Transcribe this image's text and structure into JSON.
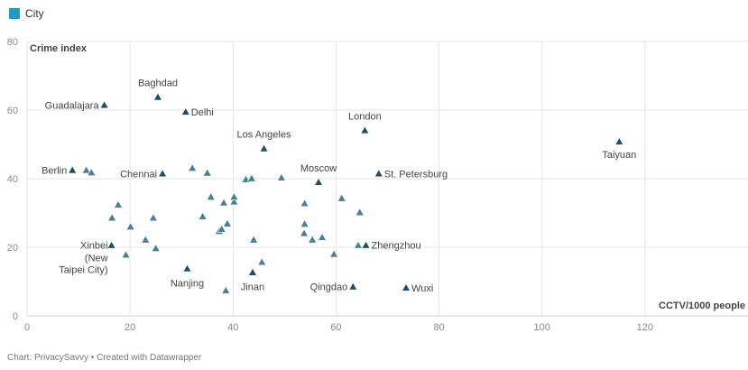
{
  "legend": {
    "label": "City",
    "color": "#1d9bc4"
  },
  "footer": "Chart: PrivacySavvy • Created with Datawrapper",
  "colors": {
    "point": "#4a7f99",
    "labeled_point": "#1f4f66",
    "grid": "#e6e6e6",
    "axis": "#cccccc"
  },
  "chart_data": {
    "type": "scatter",
    "title": "",
    "xlabel": "CCTV/1000 people",
    "ylabel": "Crime index",
    "xlim": [
      0,
      140
    ],
    "ylim": [
      0,
      80
    ],
    "xticks": [
      0,
      20,
      40,
      60,
      80,
      100,
      120
    ],
    "yticks": [
      0,
      20,
      40,
      60,
      80
    ],
    "grid": true,
    "legend_position": "top-left",
    "series": [
      {
        "name": "City",
        "points": [
          {
            "x": 15.0,
            "y": 61.5,
            "label": "Guadalajara"
          },
          {
            "x": 25.4,
            "y": 63.8,
            "label": "Baghdad"
          },
          {
            "x": 30.8,
            "y": 59.5,
            "label": "Delhi"
          },
          {
            "x": 65.6,
            "y": 54.1,
            "label": "London"
          },
          {
            "x": 46.0,
            "y": 48.8,
            "label": "Los Angeles"
          },
          {
            "x": 115.0,
            "y": 50.8,
            "label": "Taiyuan"
          },
          {
            "x": 8.8,
            "y": 42.5,
            "label": "Berlin"
          },
          {
            "x": 26.3,
            "y": 41.5,
            "label": "Chennai"
          },
          {
            "x": 56.6,
            "y": 39.0,
            "label": "Moscow"
          },
          {
            "x": 68.3,
            "y": 41.5,
            "label": "St. Petersburg"
          },
          {
            "x": 16.4,
            "y": 20.6,
            "label": "Xinbei (New Taipei City)"
          },
          {
            "x": 31.1,
            "y": 13.8,
            "label": "Nanjing"
          },
          {
            "x": 43.8,
            "y": 12.7,
            "label": "Jinan"
          },
          {
            "x": 63.3,
            "y": 8.5,
            "label": "Qingdao"
          },
          {
            "x": 65.8,
            "y": 20.6,
            "label": "Zhengzhou"
          },
          {
            "x": 73.6,
            "y": 8.2,
            "label": "Wuxi"
          },
          {
            "x": 11.5,
            "y": 42.5
          },
          {
            "x": 12.5,
            "y": 41.8
          },
          {
            "x": 16.5,
            "y": 28.6
          },
          {
            "x": 17.7,
            "y": 32.4
          },
          {
            "x": 19.2,
            "y": 17.8
          },
          {
            "x": 20.1,
            "y": 26.0
          },
          {
            "x": 23.0,
            "y": 22.2
          },
          {
            "x": 24.5,
            "y": 28.6
          },
          {
            "x": 25.0,
            "y": 19.7
          },
          {
            "x": 32.1,
            "y": 43.1
          },
          {
            "x": 34.1,
            "y": 29.0
          },
          {
            "x": 35.0,
            "y": 41.7
          },
          {
            "x": 35.7,
            "y": 34.7
          },
          {
            "x": 37.3,
            "y": 24.7
          },
          {
            "x": 37.8,
            "y": 25.3
          },
          {
            "x": 38.2,
            "y": 33.0
          },
          {
            "x": 38.9,
            "y": 26.9
          },
          {
            "x": 38.6,
            "y": 7.4
          },
          {
            "x": 40.2,
            "y": 33.3
          },
          {
            "x": 40.2,
            "y": 34.7
          },
          {
            "x": 42.5,
            "y": 39.8
          },
          {
            "x": 43.6,
            "y": 40.1
          },
          {
            "x": 44.0,
            "y": 22.2
          },
          {
            "x": 45.6,
            "y": 15.7
          },
          {
            "x": 49.4,
            "y": 40.3
          },
          {
            "x": 53.9,
            "y": 32.8
          },
          {
            "x": 53.9,
            "y": 26.8
          },
          {
            "x": 53.8,
            "y": 24.1
          },
          {
            "x": 55.4,
            "y": 22.2
          },
          {
            "x": 57.3,
            "y": 22.9
          },
          {
            "x": 59.6,
            "y": 18.0
          },
          {
            "x": 61.1,
            "y": 34.3
          },
          {
            "x": 64.6,
            "y": 30.2
          },
          {
            "x": 64.3,
            "y": 20.6
          }
        ]
      }
    ]
  }
}
